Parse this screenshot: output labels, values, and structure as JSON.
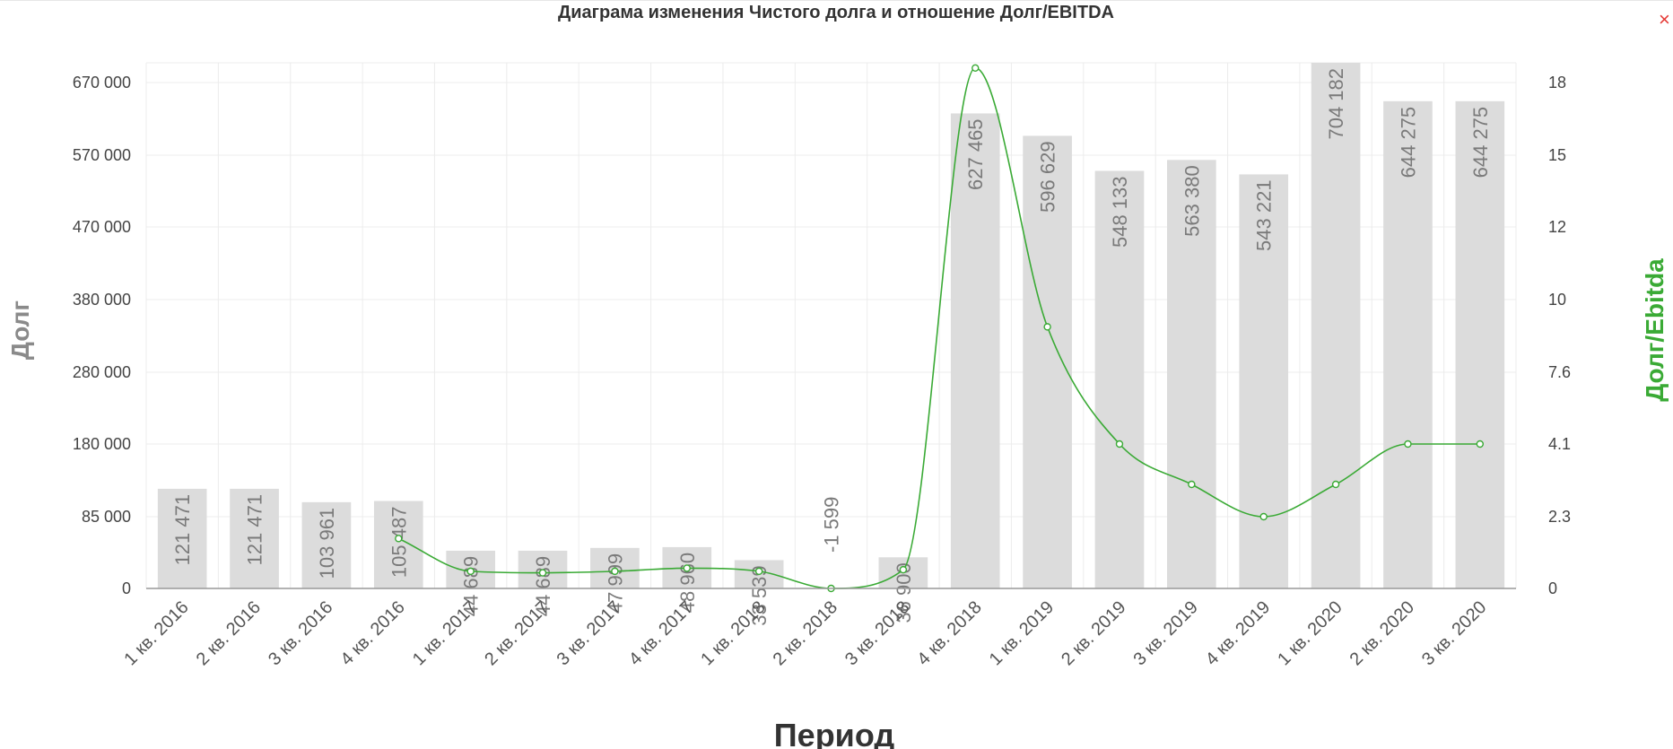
{
  "ui": {
    "close_label": "×"
  },
  "chart_data": {
    "type": "bar",
    "title": "Диаграма изменения Чистого долга и отношение Долг/EBITDA",
    "xlabel": "Период",
    "ylabel": "Долг",
    "y2label": "Долг/Ebitda",
    "categories": [
      "1 кв. 2016",
      "2 кв. 2016",
      "3 кв. 2016",
      "4 кв. 2016",
      "1 кв. 2017",
      "2 кв. 2017",
      "3 кв. 2017",
      "4 кв. 2017",
      "1 кв. 2018",
      "2 кв. 2018",
      "3 кв. 2018",
      "4 кв. 2018",
      "1 кв. 2019",
      "2 кв. 2019",
      "3 кв. 2019",
      "4 кв. 2019",
      "1 кв. 2020",
      "2 кв. 2020",
      "3 кв. 2020"
    ],
    "series": [
      {
        "type": "bar",
        "axis": "left",
        "color": "#dcdcdc",
        "values": [
          121471,
          121471,
          103961,
          105487,
          44689,
          44689,
          47999,
          48960,
          33539,
          -1599,
          36900,
          627465,
          596629,
          548133,
          563380,
          543221,
          704182,
          644275,
          644275
        ],
        "labels": [
          "121 471",
          "121 471",
          "103 961",
          "105 487",
          "44 689",
          "44 689",
          "47 999",
          "48 960",
          "33 539",
          "-1 599",
          "36 900",
          "627 465",
          "596 629",
          "548 133",
          "563 380",
          "543 221",
          "704 182",
          "644 275",
          "644 275"
        ]
      },
      {
        "type": "line",
        "axis": "right",
        "color": "#3aaa35",
        "smooth": true,
        "values": [
          null,
          null,
          null,
          1.6,
          0.55,
          0.5,
          0.55,
          0.65,
          0.55,
          0.0,
          0.6,
          18.6,
          9.1,
          4.1,
          3.1,
          2.3,
          3.1,
          4.1,
          4.1
        ]
      }
    ],
    "ylim": [
      0,
      700000
    ],
    "y_ticks": [
      "0",
      "85 000",
      "180 000",
      "280 000",
      "380 000",
      "470 000",
      "570 000",
      "670 000"
    ],
    "y2_ticks": [
      "0",
      "2.3",
      "4.1",
      "7.6",
      "10",
      "12",
      "15",
      "18"
    ],
    "grid": true
  }
}
